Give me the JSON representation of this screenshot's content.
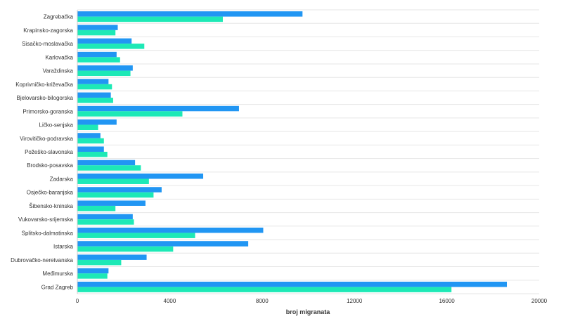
{
  "chart_data": {
    "type": "bar",
    "orientation": "horizontal",
    "categories": [
      "Zagrebačka",
      "Krapinsko-zagorska",
      "Sisačko-moslavačka",
      "Karlovačka",
      "Varaždinska",
      "Koprivničko-križevačka",
      "Bjelovarsko-bilogorska",
      "Primorsko-goranska",
      "Ličko-senjska",
      "Virovitičko-podravska",
      "Požeško-slavonska",
      "Brodsko-posavska",
      "Zadarska",
      "Osječko-baranjska",
      "Šibensko-kninska",
      "Vukovarsko-srijemska",
      "Splitsko-dalmatinska",
      "Istarska",
      "Dubrovačko-neretvanska",
      "Međimurska",
      "Grad Zagreb"
    ],
    "series": [
      {
        "color": "#2196f3",
        "values": [
          9750,
          1750,
          2350,
          1700,
          2400,
          1350,
          1450,
          7000,
          1700,
          1000,
          1150,
          2500,
          5450,
          3650,
          2950,
          2400,
          8050,
          7400,
          3000,
          1350,
          18600
        ]
      },
      {
        "color": "#1de9b6",
        "values": [
          6300,
          1650,
          2900,
          1850,
          2300,
          1500,
          1550,
          4550,
          900,
          1150,
          1300,
          2750,
          3100,
          3300,
          1650,
          2450,
          5100,
          4150,
          1900,
          1300,
          16200
        ]
      }
    ],
    "xlabel": "broj migranata",
    "xlim": [
      0,
      20000
    ],
    "xticks": [
      0,
      4000,
      8000,
      12000,
      16000,
      20000
    ],
    "grid": true,
    "legend": "none"
  }
}
